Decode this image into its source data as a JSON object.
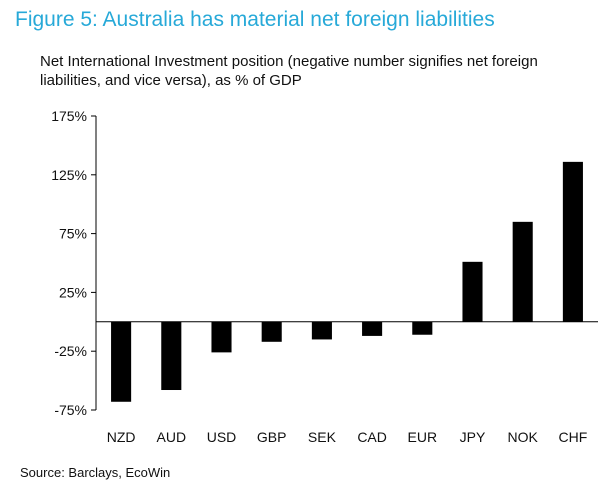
{
  "title": "Figure 5: Australia has material net foreign liabilities",
  "subtitle": "Net International Investment position (negative number signifies net foreign liabilities, and vice versa), as % of GDP",
  "source": "Source: Barclays, EcoWin",
  "colors": {
    "title": "#27a9d8",
    "bar": "#000000"
  },
  "chart_data": {
    "type": "bar",
    "title": "Figure 5: Australia has material net foreign liabilities",
    "subtitle": "Net International Investment position (negative number signifies net foreign liabilities, and vice versa), as % of GDP",
    "xlabel": "",
    "ylabel": "",
    "categories": [
      "NZD",
      "AUD",
      "USD",
      "GBP",
      "SEK",
      "CAD",
      "EUR",
      "JPY",
      "NOK",
      "CHF"
    ],
    "values": [
      -68,
      -58,
      -26,
      -17,
      -15,
      -12,
      -11,
      51,
      85,
      136
    ],
    "ylim": [
      -75,
      175
    ],
    "yticks": [
      -75,
      -25,
      25,
      75,
      125,
      175
    ],
    "ytick_labels": [
      "-75%",
      "-25%",
      "25%",
      "75%",
      "125%",
      "175%"
    ],
    "grid": false,
    "legend": "none"
  }
}
